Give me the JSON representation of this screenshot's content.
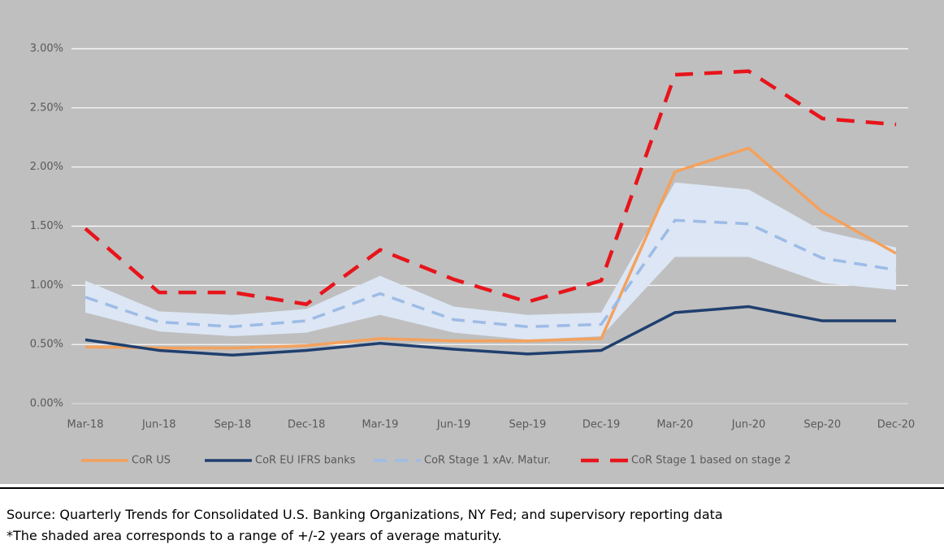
{
  "chart_data": {
    "type": "line",
    "categories": [
      "Mar-18",
      "Jun-18",
      "Sep-18",
      "Dec-18",
      "Mar-19",
      "Jun-19",
      "Sep-19",
      "Dec-19",
      "Mar-20",
      "Jun-20",
      "Sep-20",
      "Dec-20"
    ],
    "series": [
      {
        "name": "CoR US",
        "color": "#f4a15c",
        "dash": "solid",
        "values": [
          0.48,
          0.47,
          0.47,
          0.49,
          0.55,
          0.53,
          0.53,
          0.55,
          1.96,
          2.16,
          1.62,
          1.27
        ]
      },
      {
        "name": "CoR EU IFRS banks",
        "color": "#1f3f6e",
        "dash": "solid",
        "values": [
          0.54,
          0.45,
          0.41,
          0.45,
          0.51,
          0.46,
          0.42,
          0.45,
          0.77,
          0.82,
          0.7,
          0.7
        ]
      },
      {
        "name": "CoR Stage 1 xAv. Matur.",
        "color": "#9dbbe6",
        "dash": "dashed",
        "values": [
          0.9,
          0.69,
          0.65,
          0.7,
          0.93,
          0.71,
          0.65,
          0.67,
          1.55,
          1.52,
          1.23,
          1.13
        ]
      },
      {
        "name": "CoR Stage 1 based on stage 2",
        "color": "#e8141b",
        "dash": "dashed",
        "values": [
          1.48,
          0.94,
          0.94,
          0.84,
          1.3,
          1.05,
          0.86,
          1.04,
          2.78,
          2.81,
          2.41,
          2.36
        ]
      }
    ],
    "band": {
      "color": "#dce6f4",
      "upper": [
        1.04,
        0.78,
        0.75,
        0.8,
        1.08,
        0.82,
        0.75,
        0.77,
        1.87,
        1.81,
        1.46,
        1.32
      ],
      "lower": [
        0.77,
        0.61,
        0.57,
        0.6,
        0.75,
        0.6,
        0.54,
        0.57,
        1.24,
        1.24,
        1.02,
        0.96
      ]
    },
    "ylim": [
      0,
      3
    ],
    "yticks": [
      {
        "value": 0,
        "label": "0.00%"
      },
      {
        "value": 0.5,
        "label": "0.50%"
      },
      {
        "value": 1,
        "label": "1.00%"
      },
      {
        "value": 1.5,
        "label": "1.50%"
      },
      {
        "value": 2,
        "label": "2.00%"
      },
      {
        "value": 2.5,
        "label": "2.50%"
      },
      {
        "value": 3,
        "label": "3.00%"
      }
    ],
    "grid": true,
    "legend": "bottom",
    "source": "Source: Quarterly Trends for Consolidated U.S. Banking Organizations, NY Fed; and supervisory reporting data",
    "footnote": "*The shaded area corresponds to a range of +/-2 years of average maturity."
  }
}
